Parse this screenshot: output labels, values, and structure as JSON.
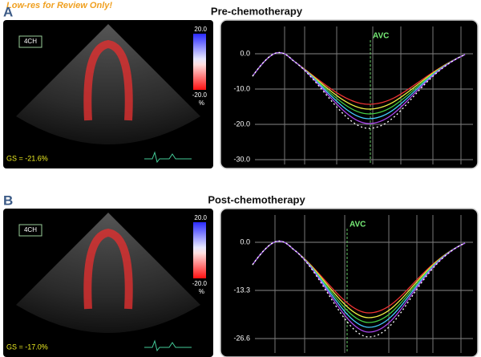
{
  "watermark": "Low-res for Review Only!",
  "panels": [
    {
      "label": "A",
      "title": "Pre-chemotherapy",
      "image": {
        "view": "4CH",
        "scale_top": "20.0",
        "scale_bottom": "-20.0",
        "scale_unit": "%",
        "global_strain": "GS = -21.6%"
      },
      "plot": {
        "marker": "AVC",
        "y_labels": [
          "0.0",
          "-10.0",
          "-20.0",
          "-30.0"
        ]
      }
    },
    {
      "label": "B",
      "title": "Post-chemotherapy",
      "image": {
        "view": "4CH",
        "scale_top": "20.0",
        "scale_bottom": "-20.0",
        "scale_unit": "%",
        "global_strain": "GS = -17.0%"
      },
      "plot": {
        "marker": "AVC",
        "y_labels": [
          "0.0",
          "-13.3",
          "-26.6"
        ]
      }
    }
  ]
}
